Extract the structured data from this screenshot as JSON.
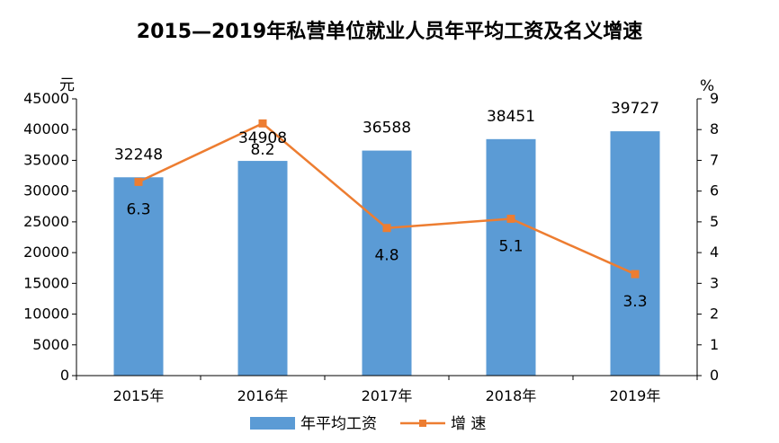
{
  "chart_data": {
    "type": "bar",
    "title": "2015—2019年私营单位就业人员年平均工资及名义增速",
    "categories": [
      "2015年",
      "2016年",
      "2017年",
      "2018年",
      "2019年"
    ],
    "series": [
      {
        "name": "年平均工资",
        "type": "bar",
        "axis": "left",
        "values": [
          32248,
          34908,
          36588,
          38451,
          39727
        ],
        "color": "#5B9BD5"
      },
      {
        "name": "增 速",
        "type": "line",
        "axis": "right",
        "values": [
          6.3,
          8.2,
          4.8,
          5.1,
          3.3
        ],
        "color": "#ED7D31"
      }
    ],
    "y_left": {
      "unit": "元",
      "ylim": [
        0,
        45000
      ],
      "ticks": [
        "0",
        "5000",
        "10000",
        "15000",
        "20000",
        "25000",
        "30000",
        "35000",
        "40000",
        "45000"
      ]
    },
    "y_right": {
      "unit": "%",
      "ylim": [
        0,
        9
      ],
      "ticks": [
        "0",
        "1",
        "2",
        "3",
        "4",
        "5",
        "6",
        "7",
        "8",
        "9"
      ]
    },
    "bar_labels": [
      "32248",
      "34908",
      "36588",
      "38451",
      "39727"
    ],
    "line_labels": [
      "6.3",
      "8.2",
      "4.8",
      "5.1",
      "3.3"
    ],
    "grid": false,
    "legend_position": "bottom"
  }
}
